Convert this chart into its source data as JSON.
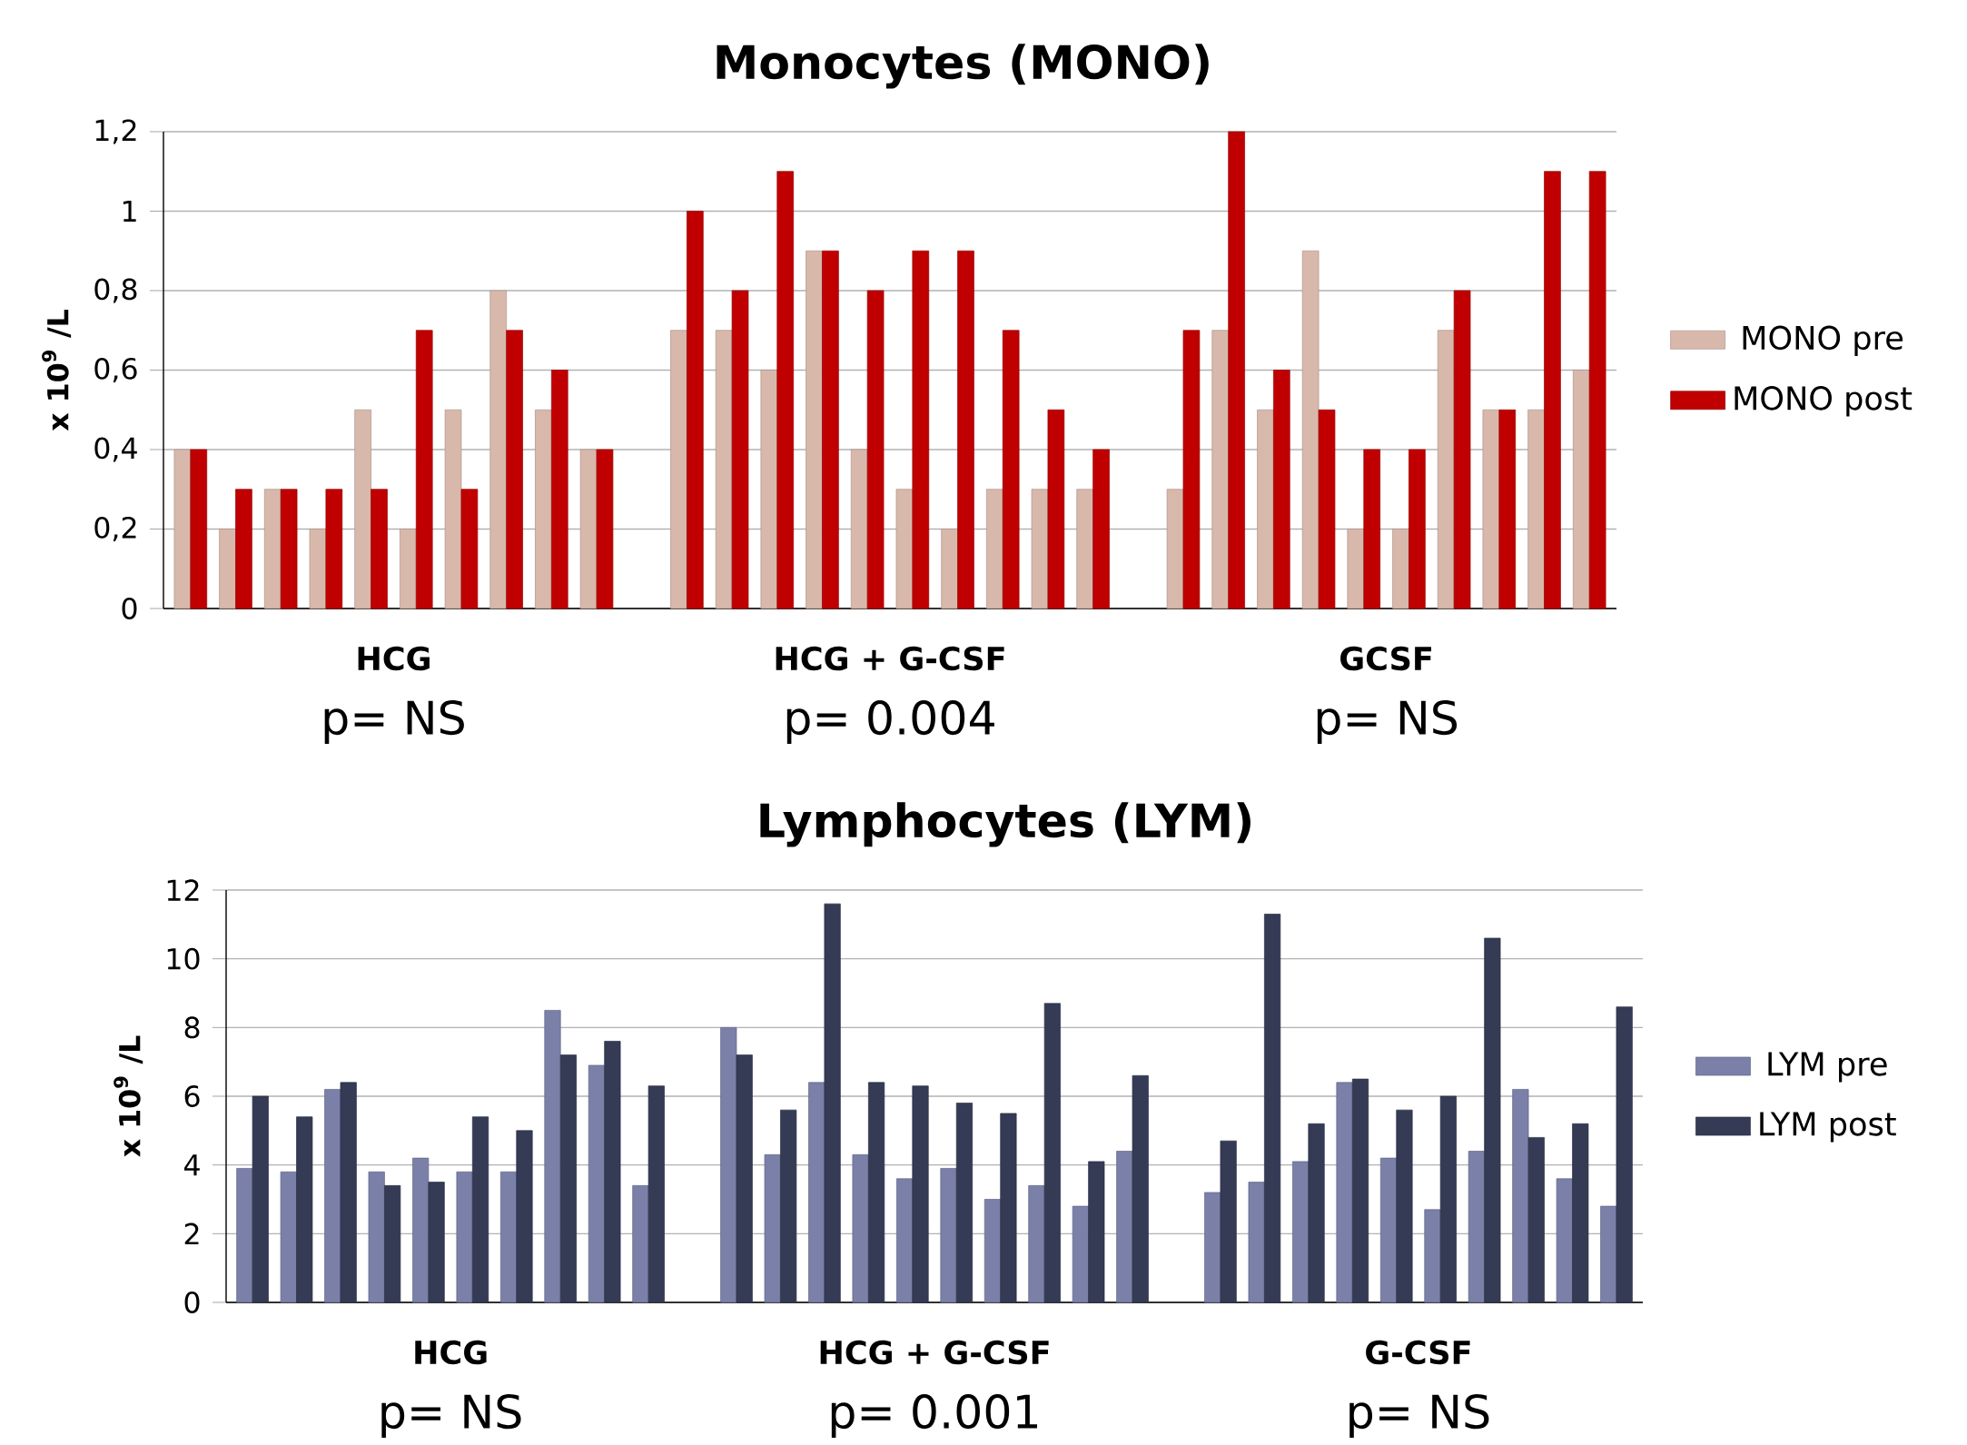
{
  "chart_data": [
    {
      "type": "bar",
      "title": "Monocytes (MONO)",
      "ylabel": "x 10$^{9}$ /L",
      "categories": [
        null,
        null,
        null,
        null,
        null,
        null,
        null,
        null,
        null,
        null,
        null,
        null,
        null,
        null,
        null,
        null,
        null,
        null,
        null,
        null,
        null,
        null,
        null,
        null,
        null,
        null,
        null,
        null,
        null,
        null,
        null,
        null
      ],
      "series": [
        {
          "name": "MONO pre",
          "color": "#d9b8ac",
          "values": [
            0.4,
            0.2,
            0.3,
            0.2,
            0.5,
            0.2,
            0.5,
            0.8,
            0.5,
            0.4,
            null,
            0.7,
            0.7,
            0.6,
            0.9,
            0.4,
            0.3,
            0.2,
            0.3,
            0.3,
            0.3,
            null,
            0.3,
            0.7,
            0.5,
            0.9,
            0.2,
            0.2,
            0.7,
            0.5,
            0.5,
            0.6
          ]
        },
        {
          "name": "MONO post",
          "color": "#c00000",
          "values": [
            0.4,
            0.3,
            0.3,
            0.3,
            0.3,
            0.7,
            0.3,
            0.7,
            0.6,
            0.4,
            null,
            1.0,
            0.8,
            1.1,
            0.9,
            0.8,
            0.9,
            0.9,
            0.7,
            0.5,
            0.4,
            null,
            0.7,
            1.2,
            0.6,
            0.5,
            0.4,
            0.4,
            0.8,
            0.5,
            1.1,
            1.1
          ]
        }
      ],
      "ylim": [
        0,
        1.2
      ],
      "yticks": [
        0,
        {
          "value": 0.2,
          "label": "0,2"
        },
        {
          "value": 0.4,
          "label": "0,4"
        },
        {
          "value": 0.6,
          "label": "0,6"
        },
        {
          "value": 0.8,
          "label": "0,8"
        },
        1,
        {
          "value": 1.2,
          "label": "1,2"
        }
      ],
      "grid": "y",
      "legend": "right",
      "tick_labels": "y",
      "annotations": [
        "HCG",
        "p= NS",
        "HCG + G-CSF",
        "p= 0.004",
        "GCSF",
        "p= NS"
      ]
    },
    {
      "type": "bar",
      "title": "Lymphocytes (LYM)",
      "ylabel": "x 10$^{9}$ /L",
      "categories": [
        null,
        null,
        null,
        null,
        null,
        null,
        null,
        null,
        null,
        null,
        null,
        null,
        null,
        null,
        null,
        null,
        null,
        null,
        null,
        null,
        null,
        null,
        null,
        null,
        null,
        null,
        null,
        null,
        null,
        null,
        null,
        null
      ],
      "series": [
        {
          "name": "LYM pre",
          "color": "#7a80a8",
          "values": [
            3.9,
            3.8,
            6.2,
            3.8,
            4.2,
            3.8,
            3.8,
            8.5,
            6.9,
            3.4,
            null,
            8.0,
            4.3,
            6.4,
            4.3,
            3.6,
            3.9,
            3.0,
            3.4,
            2.8,
            4.4,
            null,
            3.2,
            3.5,
            4.1,
            6.4,
            4.2,
            2.7,
            4.4,
            6.2,
            3.6,
            2.8
          ]
        },
        {
          "name": "LYM post",
          "color": "#353b55",
          "values": [
            6.0,
            5.4,
            6.4,
            3.4,
            3.5,
            5.4,
            5.0,
            7.2,
            7.6,
            6.3,
            null,
            7.2,
            5.6,
            11.6,
            6.4,
            6.3,
            5.8,
            5.5,
            8.7,
            4.1,
            6.6,
            null,
            4.7,
            11.3,
            5.2,
            6.5,
            5.6,
            6.0,
            10.6,
            4.8,
            5.2,
            8.6
          ]
        }
      ],
      "ylim": [
        0,
        12
      ],
      "yticks": [
        0,
        2,
        4,
        6,
        8,
        10,
        12
      ],
      "grid": "y",
      "legend": "right",
      "tick_labels": "y",
      "annotations": [
        "HCG",
        "p= NS",
        "HCG + G-CSF",
        "p= 0.001",
        "G-CSF",
        "p= NS"
      ]
    }
  ]
}
